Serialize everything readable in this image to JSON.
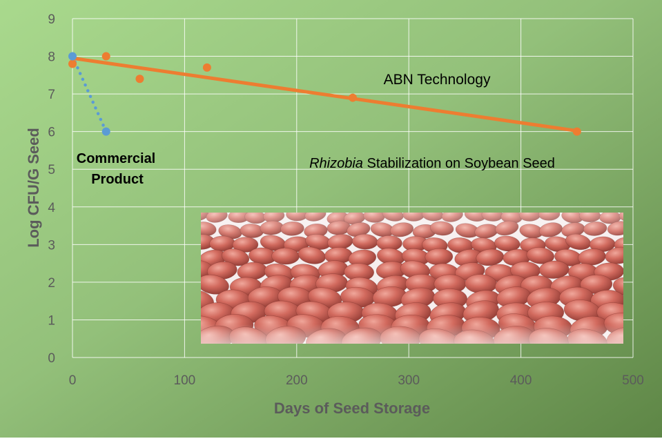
{
  "chart_data": {
    "type": "scatter",
    "title": "",
    "xlabel": "Days of Seed Storage",
    "ylabel": "Log CFU/G Seed",
    "xlim": [
      0,
      500
    ],
    "ylim": [
      0,
      9
    ],
    "x_ticks": [
      "0",
      "100",
      "200",
      "300",
      "400",
      "500"
    ],
    "y_ticks": [
      "0",
      "1",
      "2",
      "3",
      "4",
      "5",
      "6",
      "7",
      "8",
      "9"
    ],
    "grid": true,
    "background": "green gradient",
    "series": [
      {
        "name": "ABN Technology",
        "color": "#ED7D31",
        "points": [
          [
            0,
            7.8
          ],
          [
            30,
            8.0
          ],
          [
            60,
            7.4
          ],
          [
            120,
            7.7
          ],
          [
            250,
            6.9
          ],
          [
            450,
            6.0
          ]
        ],
        "trendline": {
          "from": [
            0,
            7.95
          ],
          "to": [
            450,
            6.02
          ],
          "style": "solid"
        }
      },
      {
        "name": "Commercial Product",
        "color": "#5B9BD5",
        "points": [
          [
            0,
            8.0
          ],
          [
            30,
            6.0
          ]
        ],
        "trendline": {
          "from": [
            0,
            8.0
          ],
          "to": [
            30,
            6.0
          ],
          "style": "dotted"
        }
      }
    ],
    "annotations": {
      "abn": "ABN Technology",
      "commercial_line1": "Commercial",
      "commercial_line2": "Product",
      "subtitle_italic": "Rhizobia",
      "subtitle_rest": " Stabilization on Soybean Seed"
    },
    "inset_image": "photo of red-coated soybean seeds"
  }
}
